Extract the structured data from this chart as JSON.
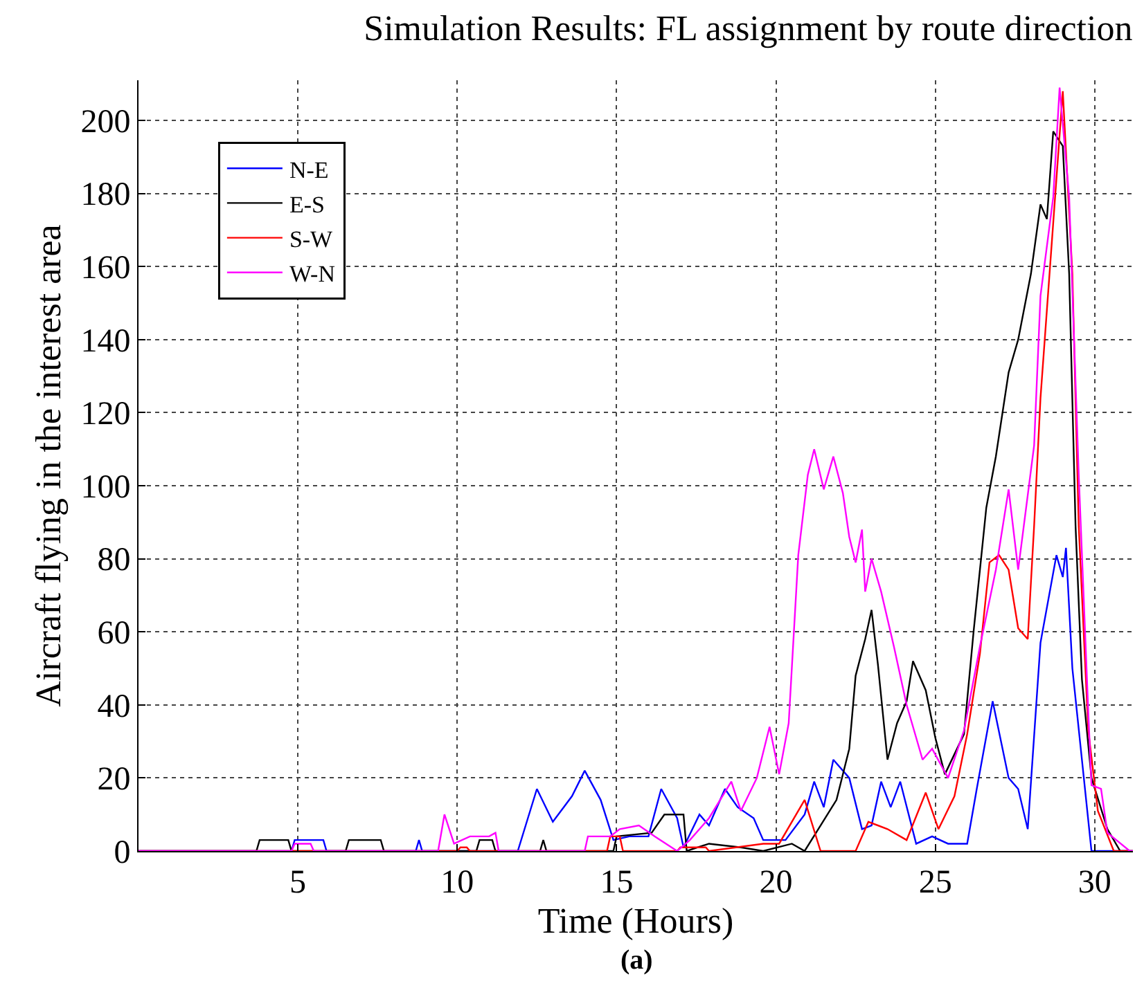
{
  "chart_data": {
    "type": "line",
    "title": "Simulation Results: FL assignment by route direction",
    "xlabel": "Time (Hours)",
    "ylabel": "Aircraft flying in the interest area",
    "annotations": [
      "(a)"
    ],
    "xlim": [
      0,
      31.2
    ],
    "ylim": [
      0,
      211
    ],
    "xticks": [
      5,
      10,
      15,
      20,
      25,
      30
    ],
    "yticks": [
      0,
      20,
      40,
      60,
      80,
      100,
      120,
      140,
      160,
      180,
      200
    ],
    "grid": true,
    "legend": "top left",
    "line_style": "solid",
    "marker": "none",
    "series": [
      {
        "name": "N-E",
        "color": "#0000ff",
        "x": [
          0,
          4.8,
          4.9,
          5.8,
          5.9,
          8.7,
          8.8,
          8.9,
          11.9,
          12.5,
          13.0,
          13.6,
          14.0,
          14.5,
          14.9,
          15.4,
          16.0,
          16.4,
          16.9,
          17.1,
          17.6,
          17.9,
          18.4,
          18.8,
          19.3,
          19.6,
          20.3,
          20.9,
          21.2,
          21.5,
          21.8,
          22.3,
          22.7,
          23.0,
          23.3,
          23.6,
          23.9,
          24.4,
          24.9,
          25.4,
          26.0,
          26.3,
          26.8,
          27.3,
          27.6,
          27.9,
          28.3,
          28.8,
          29.0,
          29.1,
          29.3,
          29.9,
          31.2
        ],
        "values": [
          0,
          0,
          3,
          3,
          0,
          0,
          3,
          0,
          0,
          17,
          8,
          15,
          22,
          14,
          3,
          4,
          4,
          17,
          9,
          1,
          10,
          7,
          17,
          12,
          9,
          3,
          3,
          10,
          19,
          12,
          25,
          20,
          6,
          7,
          19,
          12,
          19,
          2,
          4,
          2,
          2,
          17,
          41,
          20,
          17,
          6,
          57,
          81,
          75,
          83,
          50,
          0,
          0
        ]
      },
      {
        "name": "E-S",
        "color": "#000000",
        "x": [
          0,
          3.7,
          3.8,
          4.7,
          4.8,
          6.5,
          6.6,
          7.6,
          7.7,
          10.6,
          10.7,
          11.1,
          11.2,
          12.6,
          12.7,
          12.8,
          14.9,
          15.0,
          16.1,
          16.5,
          17.1,
          17.2,
          17.9,
          18.9,
          19.6,
          20.5,
          20.9,
          21.4,
          21.9,
          22.3,
          22.5,
          22.8,
          23.0,
          23.2,
          23.5,
          23.8,
          24.1,
          24.3,
          24.7,
          25.0,
          25.3,
          25.9,
          26.2,
          26.6,
          26.9,
          27.3,
          27.6,
          28.0,
          28.3,
          28.5,
          28.7,
          29.0,
          29.2,
          29.4,
          29.6,
          29.9,
          30.4,
          30.8,
          31.2
        ],
        "values": [
          0,
          0,
          3,
          3,
          0,
          0,
          3,
          3,
          0,
          0,
          3,
          3,
          0,
          0,
          3,
          0,
          0,
          4,
          5,
          10,
          10,
          0,
          2,
          1,
          0,
          2,
          0,
          7,
          14,
          28,
          48,
          58,
          66,
          51,
          25,
          35,
          41,
          52,
          44,
          31,
          21,
          32,
          60,
          94,
          108,
          131,
          140,
          158,
          177,
          173,
          197,
          193,
          158,
          89,
          47,
          20,
          6,
          0,
          0
        ]
      },
      {
        "name": "S-W",
        "color": "#ff0000",
        "x": [
          0,
          10.0,
          10.1,
          10.3,
          10.4,
          14.7,
          14.8,
          15.1,
          15.2,
          16.9,
          17.0,
          17.8,
          17.9,
          19.6,
          20.1,
          20.9,
          21.4,
          22.5,
          22.9,
          23.5,
          24.1,
          24.7,
          25.1,
          25.6,
          26.0,
          26.4,
          26.7,
          27.0,
          27.3,
          27.6,
          27.9,
          28.1,
          28.3,
          28.7,
          29.0,
          29.3,
          29.5,
          29.8,
          30.1,
          30.6,
          31.2
        ],
        "values": [
          0,
          0,
          1,
          1,
          0,
          0,
          4,
          4,
          0,
          0,
          1,
          1,
          0,
          2,
          2,
          14,
          0,
          0,
          8,
          6,
          3,
          16,
          6,
          15,
          32,
          54,
          79,
          81,
          77,
          61,
          58,
          89,
          124,
          172,
          208,
          158,
          89,
          33,
          11,
          0,
          0
        ]
      },
      {
        "name": "W-N",
        "color": "#ff00ff",
        "x": [
          0,
          4.8,
          4.9,
          5.4,
          5.5,
          9.4,
          9.6,
          9.9,
          10.4,
          11.0,
          11.2,
          11.3,
          14.0,
          14.1,
          14.8,
          15.1,
          15.7,
          16.2,
          16.9,
          17.3,
          17.9,
          18.6,
          18.9,
          19.4,
          19.8,
          20.1,
          20.4,
          20.7,
          21.0,
          21.2,
          21.5,
          21.8,
          22.1,
          22.3,
          22.5,
          22.7,
          22.8,
          23.0,
          23.3,
          23.7,
          24.1,
          24.6,
          24.9,
          25.4,
          25.9,
          26.4,
          26.9,
          27.3,
          27.6,
          28.1,
          28.3,
          28.7,
          28.9,
          29.2,
          29.5,
          29.8,
          29.9,
          30.2,
          30.4,
          31.1,
          31.2
        ],
        "values": [
          0,
          0,
          2,
          2,
          0,
          0,
          10,
          2,
          4,
          4,
          5,
          0,
          0,
          4,
          4,
          6,
          7,
          4,
          0,
          3,
          9,
          19,
          11,
          20,
          34,
          21,
          35,
          81,
          103,
          110,
          99,
          108,
          98,
          86,
          79,
          88,
          71,
          80,
          71,
          56,
          40,
          25,
          28,
          20,
          33,
          56,
          77,
          99,
          77,
          111,
          152,
          179,
          209,
          179,
          103,
          38,
          18,
          17,
          5,
          0,
          0
        ]
      }
    ]
  }
}
